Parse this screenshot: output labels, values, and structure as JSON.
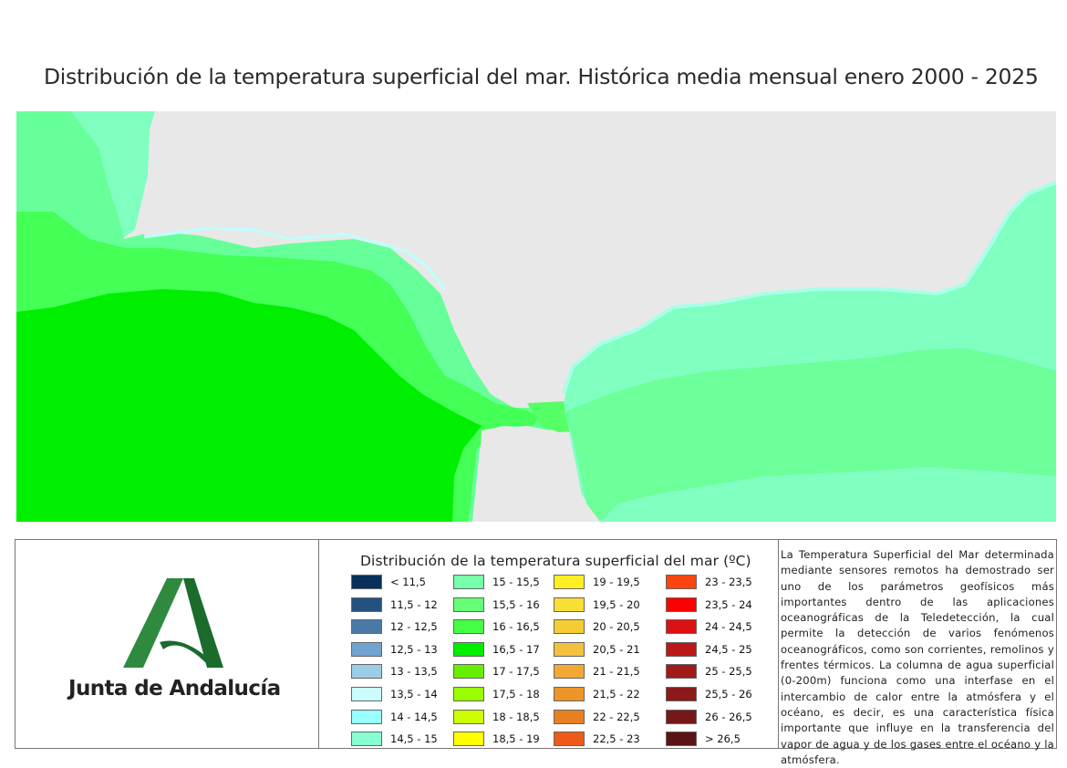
{
  "title": "Distribución de la temperatura superficial del mar. Histórica media mensual enero 2000 - 2025",
  "map": {
    "land_color": "#e8e8e8",
    "sea_colors": [
      "#7fffd0",
      "#66ff99",
      "#44ff55",
      "#00ee00",
      "#55ee00"
    ]
  },
  "logo": {
    "text": "Junta de Andalucía",
    "colors": [
      "#2f8a3f",
      "#1a6b2c"
    ]
  },
  "legend": {
    "title": "Distribución de la temperatura superficial del mar (ºC)",
    "columns": [
      [
        {
          "label": "< 11,5",
          "color": "#08305a"
        },
        {
          "label": "11,5 - 12",
          "color": "#24527e"
        },
        {
          "label": "12 - 12,5",
          "color": "#4a79a8"
        },
        {
          "label": "12,5 - 13",
          "color": "#6fa3d0"
        },
        {
          "label": "13 - 13,5",
          "color": "#9ccde6"
        },
        {
          "label": "13,5 - 14",
          "color": "#ccfdfd"
        },
        {
          "label": "14 - 14,5",
          "color": "#99ffff"
        },
        {
          "label": "14,5 - 15",
          "color": "#88ffd2"
        }
      ],
      [
        {
          "label": "15 - 15,5",
          "color": "#77ffaa"
        },
        {
          "label": "15,5 - 16",
          "color": "#66ff77"
        },
        {
          "label": "16 - 16,5",
          "color": "#44ff44"
        },
        {
          "label": "16,5 - 17",
          "color": "#00ee00"
        },
        {
          "label": "17 - 17,5",
          "color": "#66ee00"
        },
        {
          "label": "17,5 - 18",
          "color": "#99ff00"
        },
        {
          "label": "18 - 18,5",
          "color": "#ccff00"
        },
        {
          "label": "18,5 - 19",
          "color": "#ffff00"
        }
      ],
      [
        {
          "label": "19 - 19,5",
          "color": "#ffee22"
        },
        {
          "label": "19,5 - 20",
          "color": "#f8df33"
        },
        {
          "label": "20 - 20,5",
          "color": "#f5cc33"
        },
        {
          "label": "20,5 - 21",
          "color": "#f4c040"
        },
        {
          "label": "21 - 21,5",
          "color": "#f2a833"
        },
        {
          "label": "21,5 - 22",
          "color": "#ee9528"
        },
        {
          "label": "22 - 22,5",
          "color": "#e88020"
        },
        {
          "label": "22,5 - 23",
          "color": "#f05a18"
        }
      ],
      [
        {
          "label": "23 - 23,5",
          "color": "#ff4411"
        },
        {
          "label": "23,5 - 24",
          "color": "#ff0000"
        },
        {
          "label": "24 - 24,5",
          "color": "#dd1111"
        },
        {
          "label": "24,5 - 25",
          "color": "#bb1818"
        },
        {
          "label": "25 - 25,5",
          "color": "#a01a1a"
        },
        {
          "label": "25,5 - 26",
          "color": "#8c1a1a"
        },
        {
          "label": "26 - 26,5",
          "color": "#771818"
        },
        {
          "label": "> 26,5",
          "color": "#5a1414"
        }
      ]
    ]
  },
  "description": "La Temperatura Superficial del Mar determinada mediante sensores remotos ha demostrado ser uno de los parámetros geofísicos más importantes dentro de las aplicaciones oceanográficas de la Teledetección, la cual permite la detección de varios fenómenos oceanográficos, como son corrientes, remolinos y frentes térmicos. La columna de agua superficial (0-200m) funciona como una interfase en el intercambio de calor entre la atmósfera y el océano, es decir, es una característica física importante que influye en la transferencia del vapor de agua y de los gases entre el océano y la atmósfera."
}
